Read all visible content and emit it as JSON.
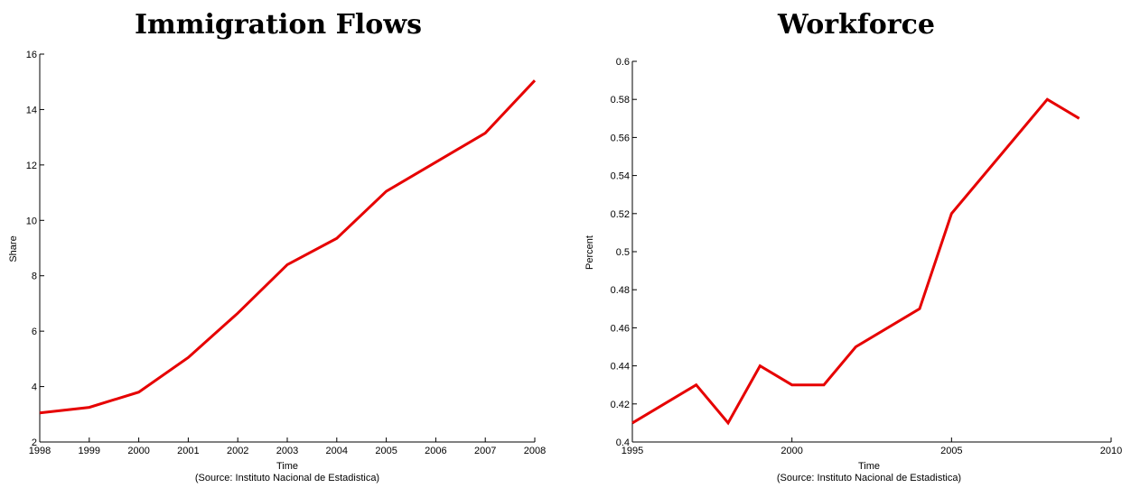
{
  "chart_data": [
    {
      "type": "line",
      "title": "Immigration Flows",
      "xlabel": "Time",
      "ylabel": "Share",
      "source": "(Source: Instituto Nacional de Estadistica)",
      "xlim": [
        1998,
        2008
      ],
      "ylim": [
        2,
        16
      ],
      "xticks": [
        "1998",
        "1999",
        "2000",
        "2001",
        "2002",
        "2003",
        "2004",
        "2005",
        "2006",
        "2007",
        "2008"
      ],
      "yticks": [
        "2",
        "4",
        "6",
        "8",
        "10",
        "12",
        "14",
        "16"
      ],
      "grid": false,
      "color": "#e60000",
      "x": [
        1998,
        1999,
        2000,
        2001,
        2002,
        2003,
        2004,
        2005,
        2006,
        2007,
        2008
      ],
      "y": [
        3.05,
        3.25,
        3.8,
        5.05,
        6.65,
        8.4,
        9.35,
        11.05,
        12.1,
        13.15,
        15.05
      ]
    },
    {
      "type": "line",
      "title": "Workforce",
      "xlabel": "Time",
      "ylabel": "Percent",
      "source": "(Source: Instituto Nacional de Estadistica)",
      "xlim": [
        1995,
        2010
      ],
      "ylim": [
        0.4,
        0.6
      ],
      "xticks": [
        "1995",
        "2000",
        "2005",
        "2010"
      ],
      "yticks": [
        "0.4",
        "0.42",
        "0.44",
        "0.46",
        "0.48",
        "0.5",
        "0.52",
        "0.54",
        "0.56",
        "0.58",
        "0.6"
      ],
      "grid": false,
      "color": "#e60000",
      "x": [
        1995,
        1997,
        1998,
        1999,
        2000,
        2001,
        2002,
        2004,
        2005,
        2008,
        2009
      ],
      "y": [
        0.41,
        0.43,
        0.41,
        0.44,
        0.43,
        0.43,
        0.45,
        0.47,
        0.52,
        0.58,
        0.57
      ]
    }
  ]
}
